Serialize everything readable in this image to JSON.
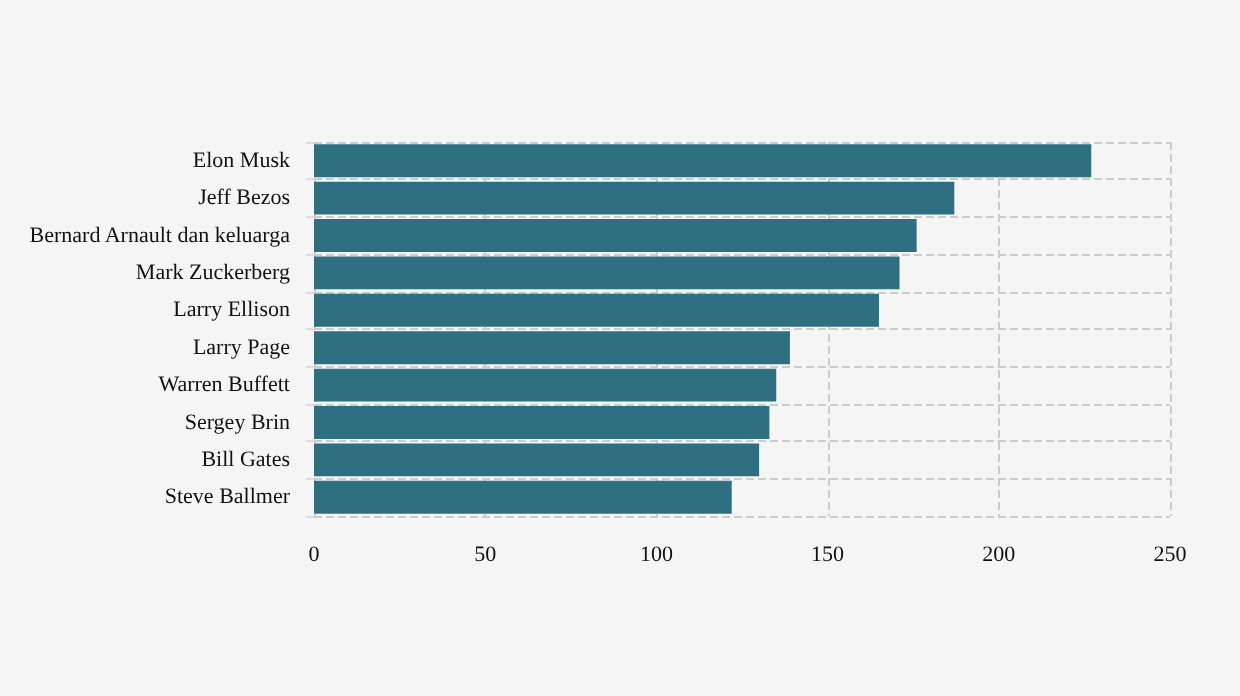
{
  "chart_data": {
    "type": "bar",
    "orientation": "horizontal",
    "categories": [
      "Elon Musk",
      "Jeff Bezos",
      "Bernard Arnault dan keluarga",
      "Mark Zuckerberg",
      "Larry Ellison",
      "Larry Page",
      "Warren Buffett",
      "Sergey Brin",
      "Bill Gates",
      "Steve Ballmer"
    ],
    "series": [
      {
        "color": "#2e6f82",
        "values": [
          227,
          187,
          176,
          171,
          165,
          139,
          135,
          133,
          130,
          122
        ]
      }
    ],
    "xlim": [
      0,
      250
    ],
    "xticks": [
      0,
      50,
      100,
      150,
      200,
      250
    ],
    "grid": true
  }
}
